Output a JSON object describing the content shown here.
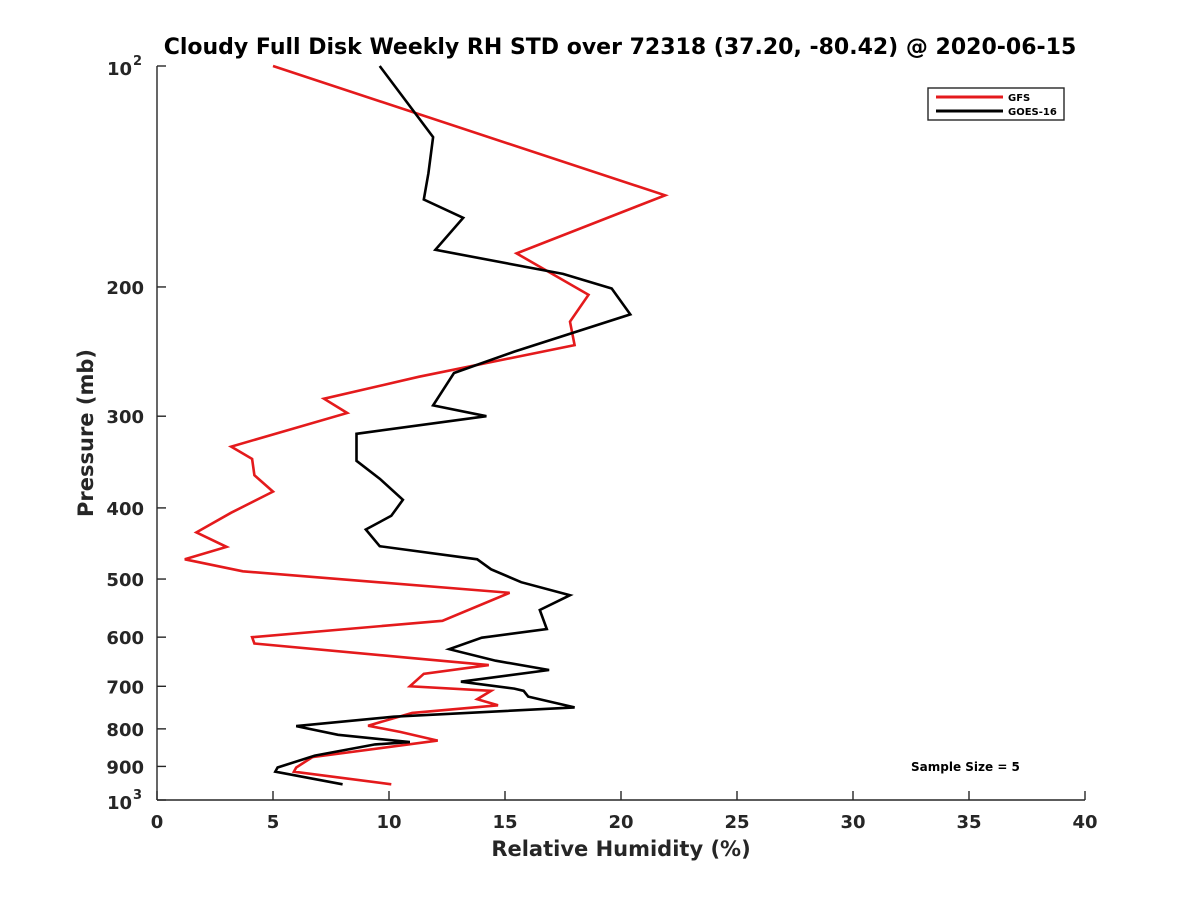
{
  "chart_data": {
    "type": "line",
    "title": "Cloudy Full Disk Weekly RH STD over 72318 (37.20, -80.42) @ 2020-06-15",
    "xlabel": "Relative Humidity (%)",
    "ylabel": "Pressure (mb)",
    "xlim": [
      0,
      40
    ],
    "ylim": [
      100,
      1000
    ],
    "yscale": "log",
    "y_reversed": true,
    "grid": false,
    "legend_location": "top-right",
    "x_ticks": [
      "0",
      "5",
      "10",
      "15",
      "20",
      "25",
      "30",
      "35",
      "40"
    ],
    "y_ticks": [
      {
        "value": 100,
        "base": "10",
        "exp": "2"
      },
      {
        "value": 200,
        "label": "200"
      },
      {
        "value": 300,
        "label": "300"
      },
      {
        "value": 400,
        "label": "400"
      },
      {
        "value": 500,
        "label": "500"
      },
      {
        "value": 600,
        "label": "600"
      },
      {
        "value": 700,
        "label": "700"
      },
      {
        "value": 800,
        "label": "800"
      },
      {
        "value": 900,
        "label": "900"
      },
      {
        "value": 1000,
        "base": "10",
        "exp": "3"
      }
    ],
    "annotation": "Sample Size = 5",
    "series": [
      {
        "name": "GFS",
        "color": "#e41a1c",
        "points": [
          [
            5.0,
            100
          ],
          [
            21.9,
            150
          ],
          [
            15.5,
            180
          ],
          [
            18.6,
            205
          ],
          [
            17.8,
            223
          ],
          [
            18.0,
            240
          ],
          [
            11.3,
            265
          ],
          [
            7.2,
            284
          ],
          [
            8.2,
            297
          ],
          [
            3.2,
            330
          ],
          [
            4.1,
            343
          ],
          [
            4.2,
            361
          ],
          [
            5.0,
            380
          ],
          [
            3.2,
            406
          ],
          [
            1.7,
            432
          ],
          [
            3.0,
            452
          ],
          [
            1.2,
            470
          ],
          [
            3.7,
            488
          ],
          [
            9.5,
            505
          ],
          [
            15.2,
            522
          ],
          [
            12.3,
            570
          ],
          [
            4.1,
            600
          ],
          [
            4.2,
            612
          ],
          [
            10.8,
            640
          ],
          [
            14.3,
            655
          ],
          [
            11.5,
            673
          ],
          [
            10.9,
            700
          ],
          [
            14.4,
            710
          ],
          [
            13.8,
            729
          ],
          [
            14.7,
            743
          ],
          [
            11.0,
            761
          ],
          [
            9.1,
            792
          ],
          [
            10.5,
            808
          ],
          [
            12.1,
            830
          ],
          [
            6.7,
            874
          ],
          [
            6.0,
            903
          ],
          [
            5.9,
            915
          ],
          [
            10.1,
            952
          ]
        ]
      },
      {
        "name": "GOES-16",
        "color": "#000000",
        "points": [
          [
            9.6,
            100
          ],
          [
            11.9,
            125
          ],
          [
            11.7,
            140
          ],
          [
            11.5,
            152
          ],
          [
            13.2,
            161
          ],
          [
            12.0,
            178
          ],
          [
            17.5,
            192
          ],
          [
            19.6,
            201
          ],
          [
            20.4,
            218
          ],
          [
            15.4,
            245
          ],
          [
            12.8,
            262
          ],
          [
            11.9,
            290
          ],
          [
            14.2,
            300
          ],
          [
            8.6,
            317
          ],
          [
            8.6,
            345
          ],
          [
            9.6,
            365
          ],
          [
            10.6,
            390
          ],
          [
            10.1,
            410
          ],
          [
            9.0,
            428
          ],
          [
            9.6,
            451
          ],
          [
            13.8,
            470
          ],
          [
            14.4,
            485
          ],
          [
            15.7,
            505
          ],
          [
            17.8,
            526
          ],
          [
            16.5,
            551
          ],
          [
            16.8,
            585
          ],
          [
            14.0,
            601
          ],
          [
            12.6,
            623
          ],
          [
            14.6,
            646
          ],
          [
            16.9,
            665
          ],
          [
            13.1,
            690
          ],
          [
            15.4,
            705
          ],
          [
            15.8,
            710
          ],
          [
            16.0,
            723
          ],
          [
            18.0,
            748
          ],
          [
            10.2,
            770
          ],
          [
            6.0,
            793
          ],
          [
            7.8,
            815
          ],
          [
            10.9,
            834
          ],
          [
            9.4,
            840
          ],
          [
            6.8,
            870
          ],
          [
            5.2,
            903
          ],
          [
            5.1,
            915
          ],
          [
            8.0,
            952
          ]
        ]
      }
    ]
  }
}
